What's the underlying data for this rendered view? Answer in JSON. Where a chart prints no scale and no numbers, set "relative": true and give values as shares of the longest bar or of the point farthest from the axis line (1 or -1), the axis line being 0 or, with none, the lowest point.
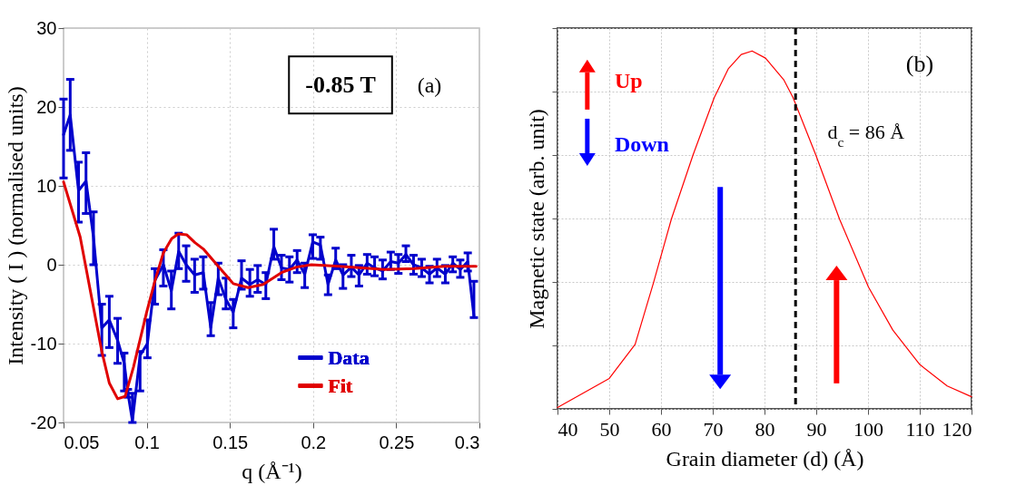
{
  "chart_data": [
    {
      "type": "line",
      "xlabel": "q (Å⁻¹)",
      "ylabel": "Intensity ( I )   (normalised units)",
      "xlim": [
        0.05,
        0.3
      ],
      "xticks": [
        0.05,
        0.1,
        0.15,
        0.2,
        0.25,
        0.3
      ],
      "ylim": [
        -20,
        30
      ],
      "yticks": [
        -20,
        -10,
        0,
        10,
        20,
        30
      ],
      "grid": true,
      "legend": "bottom",
      "annotations": [
        "-0.85 T",
        "(a)"
      ],
      "series": [
        {
          "name": "Data",
          "color": "#0000cc",
          "x": [
            0.05,
            0.054,
            0.059,
            0.0635,
            0.068,
            0.073,
            0.0775,
            0.0825,
            0.0865,
            0.0887,
            0.0914,
            0.096,
            0.1004,
            0.1049,
            0.11,
            0.1148,
            0.1192,
            0.1237,
            0.1288,
            0.134,
            0.1385,
            0.143,
            0.1476,
            0.152,
            0.157,
            0.162,
            0.1667,
            0.1716,
            0.1764,
            0.181,
            0.1858,
            0.1904,
            0.195,
            0.1998,
            0.2044,
            0.209,
            0.2136,
            0.218,
            0.223,
            0.2276,
            0.2325,
            0.237,
            0.2418,
            0.2467,
            0.2513,
            0.2558,
            0.2604,
            0.2653,
            0.27,
            0.2745,
            0.2795,
            0.284,
            0.2885,
            0.293,
            0.2967
          ],
          "values": [
            16.5,
            19,
            9.4,
            10.6,
            3.5,
            -8,
            -7,
            -9.6,
            -12.5,
            -16.3,
            -19.8,
            -11.5,
            -10,
            -2,
            0,
            -3.3,
            1.7,
            0,
            -1.3,
            -1,
            -8,
            -1.7,
            -4.4,
            -6,
            -1.7,
            -2.5,
            -1.9,
            -2.5,
            2.3,
            -0.4,
            -0.6,
            0.6,
            -1.2,
            2.9,
            2.5,
            -2.5,
            0.6,
            -1.3,
            -0.3,
            -1.3,
            0.2,
            -0.4,
            -0.8,
            0.4,
            0.2,
            1.3,
            0,
            -0.4,
            -1.2,
            -0.4,
            -1.2,
            0.2,
            -0.6,
            0.4,
            -6.5
          ],
          "errors": [
            [
              11,
              21
            ],
            [
              14.5,
              23.5
            ],
            [
              5.4,
              13
            ],
            [
              6.5,
              14.2
            ],
            [
              0,
              6.7
            ],
            [
              -11.5,
              -5
            ],
            [
              -10.5,
              -4
            ],
            [
              -12.5,
              -6.8
            ],
            [
              -16,
              -11.2
            ],
            [
              -16.8,
              -15.8
            ],
            [
              -20,
              -16.3
            ],
            [
              -16,
              -11
            ],
            [
              -11.8,
              -7
            ],
            [
              -5,
              -0.5
            ],
            [
              -2.7,
              1.9
            ],
            [
              -5.6,
              -0.8
            ],
            [
              -0.5,
              4
            ],
            [
              -2.1,
              2.4
            ],
            [
              -3.5,
              0.7
            ],
            [
              -3.1,
              1
            ],
            [
              -9,
              -4.8
            ],
            [
              -3.8,
              0.2
            ],
            [
              -5.6,
              -1.7
            ],
            [
              -8,
              -4.4
            ],
            [
              -3.1,
              0.5
            ],
            [
              -4,
              -0.6
            ],
            [
              -3.5,
              -0.1
            ],
            [
              -4.3,
              -1
            ],
            [
              0.7,
              4.5
            ],
            [
              -1.9,
              1.2
            ],
            [
              -2.2,
              1
            ],
            [
              -1,
              1.8
            ],
            [
              -2.9,
              0.2
            ],
            [
              0.8,
              3.8
            ],
            [
              0.7,
              3.5
            ],
            [
              -3.8,
              -1.3
            ],
            [
              -0.5,
              2.1
            ],
            [
              -3,
              0
            ],
            [
              -1.5,
              1.2
            ],
            [
              -2.7,
              -0.1
            ],
            [
              -1.2,
              1.3
            ],
            [
              -1.4,
              1
            ],
            [
              -1.8,
              0.6
            ],
            [
              -0.6,
              1.6
            ],
            [
              -1.1,
              1.3
            ],
            [
              0.4,
              2.4
            ],
            [
              -1.2,
              1.2
            ],
            [
              -1.5,
              0.7
            ],
            [
              -2.3,
              -0.2
            ],
            [
              -1.5,
              0.7
            ],
            [
              -2.3,
              -0.1
            ],
            [
              -0.9,
              1
            ],
            [
              -1.6,
              0.6
            ],
            [
              -0.8,
              1.5
            ],
            [
              -6.7,
              -2.1
            ]
          ]
        },
        {
          "name": "Fit",
          "color": "#e00000",
          "x": [
            0.05,
            0.06,
            0.073,
            0.0775,
            0.0825,
            0.087,
            0.092,
            0.1,
            0.105,
            0.11,
            0.115,
            0.119,
            0.124,
            0.129,
            0.134,
            0.143,
            0.152,
            0.161,
            0.17,
            0.181,
            0.19,
            0.199,
            0.216,
            0.243,
            0.261,
            0.279,
            0.298
          ],
          "values": [
            10.5,
            3.5,
            -11,
            -15,
            -17,
            -16.7,
            -13,
            -6,
            -2,
            1.5,
            3.3,
            3.9,
            3.8,
            2.8,
            2,
            -0.2,
            -2.4,
            -2.9,
            -2.5,
            -1,
            -0.3,
            0,
            -0.2,
            -0.6,
            -0.5,
            -0.2,
            -0.2
          ]
        }
      ]
    },
    {
      "type": "line",
      "xlabel": "Grain diameter (d) (Å)",
      "ylabel": "Magnetic state (arb. unit)",
      "xlim": [
        40,
        120
      ],
      "xticks": [
        40,
        50,
        60,
        70,
        80,
        90,
        100,
        110,
        120
      ],
      "relative": true,
      "grid": true,
      "annotations": [
        "(b)",
        "Up",
        "Down"
      ],
      "ref_lines": [
        {
          "axis": "x",
          "value": 86,
          "label": "d$_{c}$ = 86 Å",
          "color": "#000000",
          "line_style": "dashed"
        }
      ],
      "series": [
        {
          "color": "#ff0000",
          "x": [
            40,
            50,
            55,
            58.5,
            62,
            66.2,
            70.3,
            73,
            75.5,
            77.6,
            80.2,
            83.7,
            85.5,
            89.9,
            94.5,
            100.1,
            104.8,
            110,
            115.3,
            120
          ],
          "values": [
            0.004,
            0.085,
            0.18,
            0.35,
            0.53,
            0.71,
            0.87,
            0.95,
            0.99,
            1,
            0.98,
            0.92,
            0.87,
            0.71,
            0.53,
            0.34,
            0.22,
            0.124,
            0.064,
            0.034
          ]
        }
      ]
    }
  ]
}
